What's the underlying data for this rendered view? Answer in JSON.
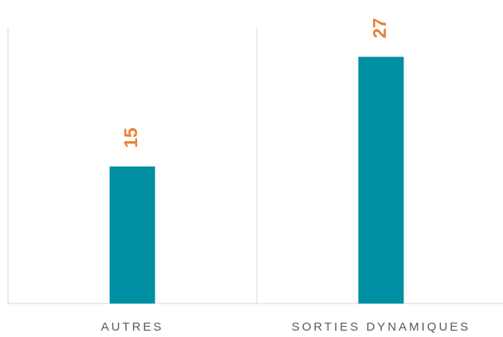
{
  "chart_data": {
    "type": "bar",
    "categories": [
      "AUTRES",
      "SORTIES DYNAMIQUES"
    ],
    "values": [
      15,
      27
    ],
    "color": "#008fa3",
    "label_color": "#ed7d31"
  }
}
